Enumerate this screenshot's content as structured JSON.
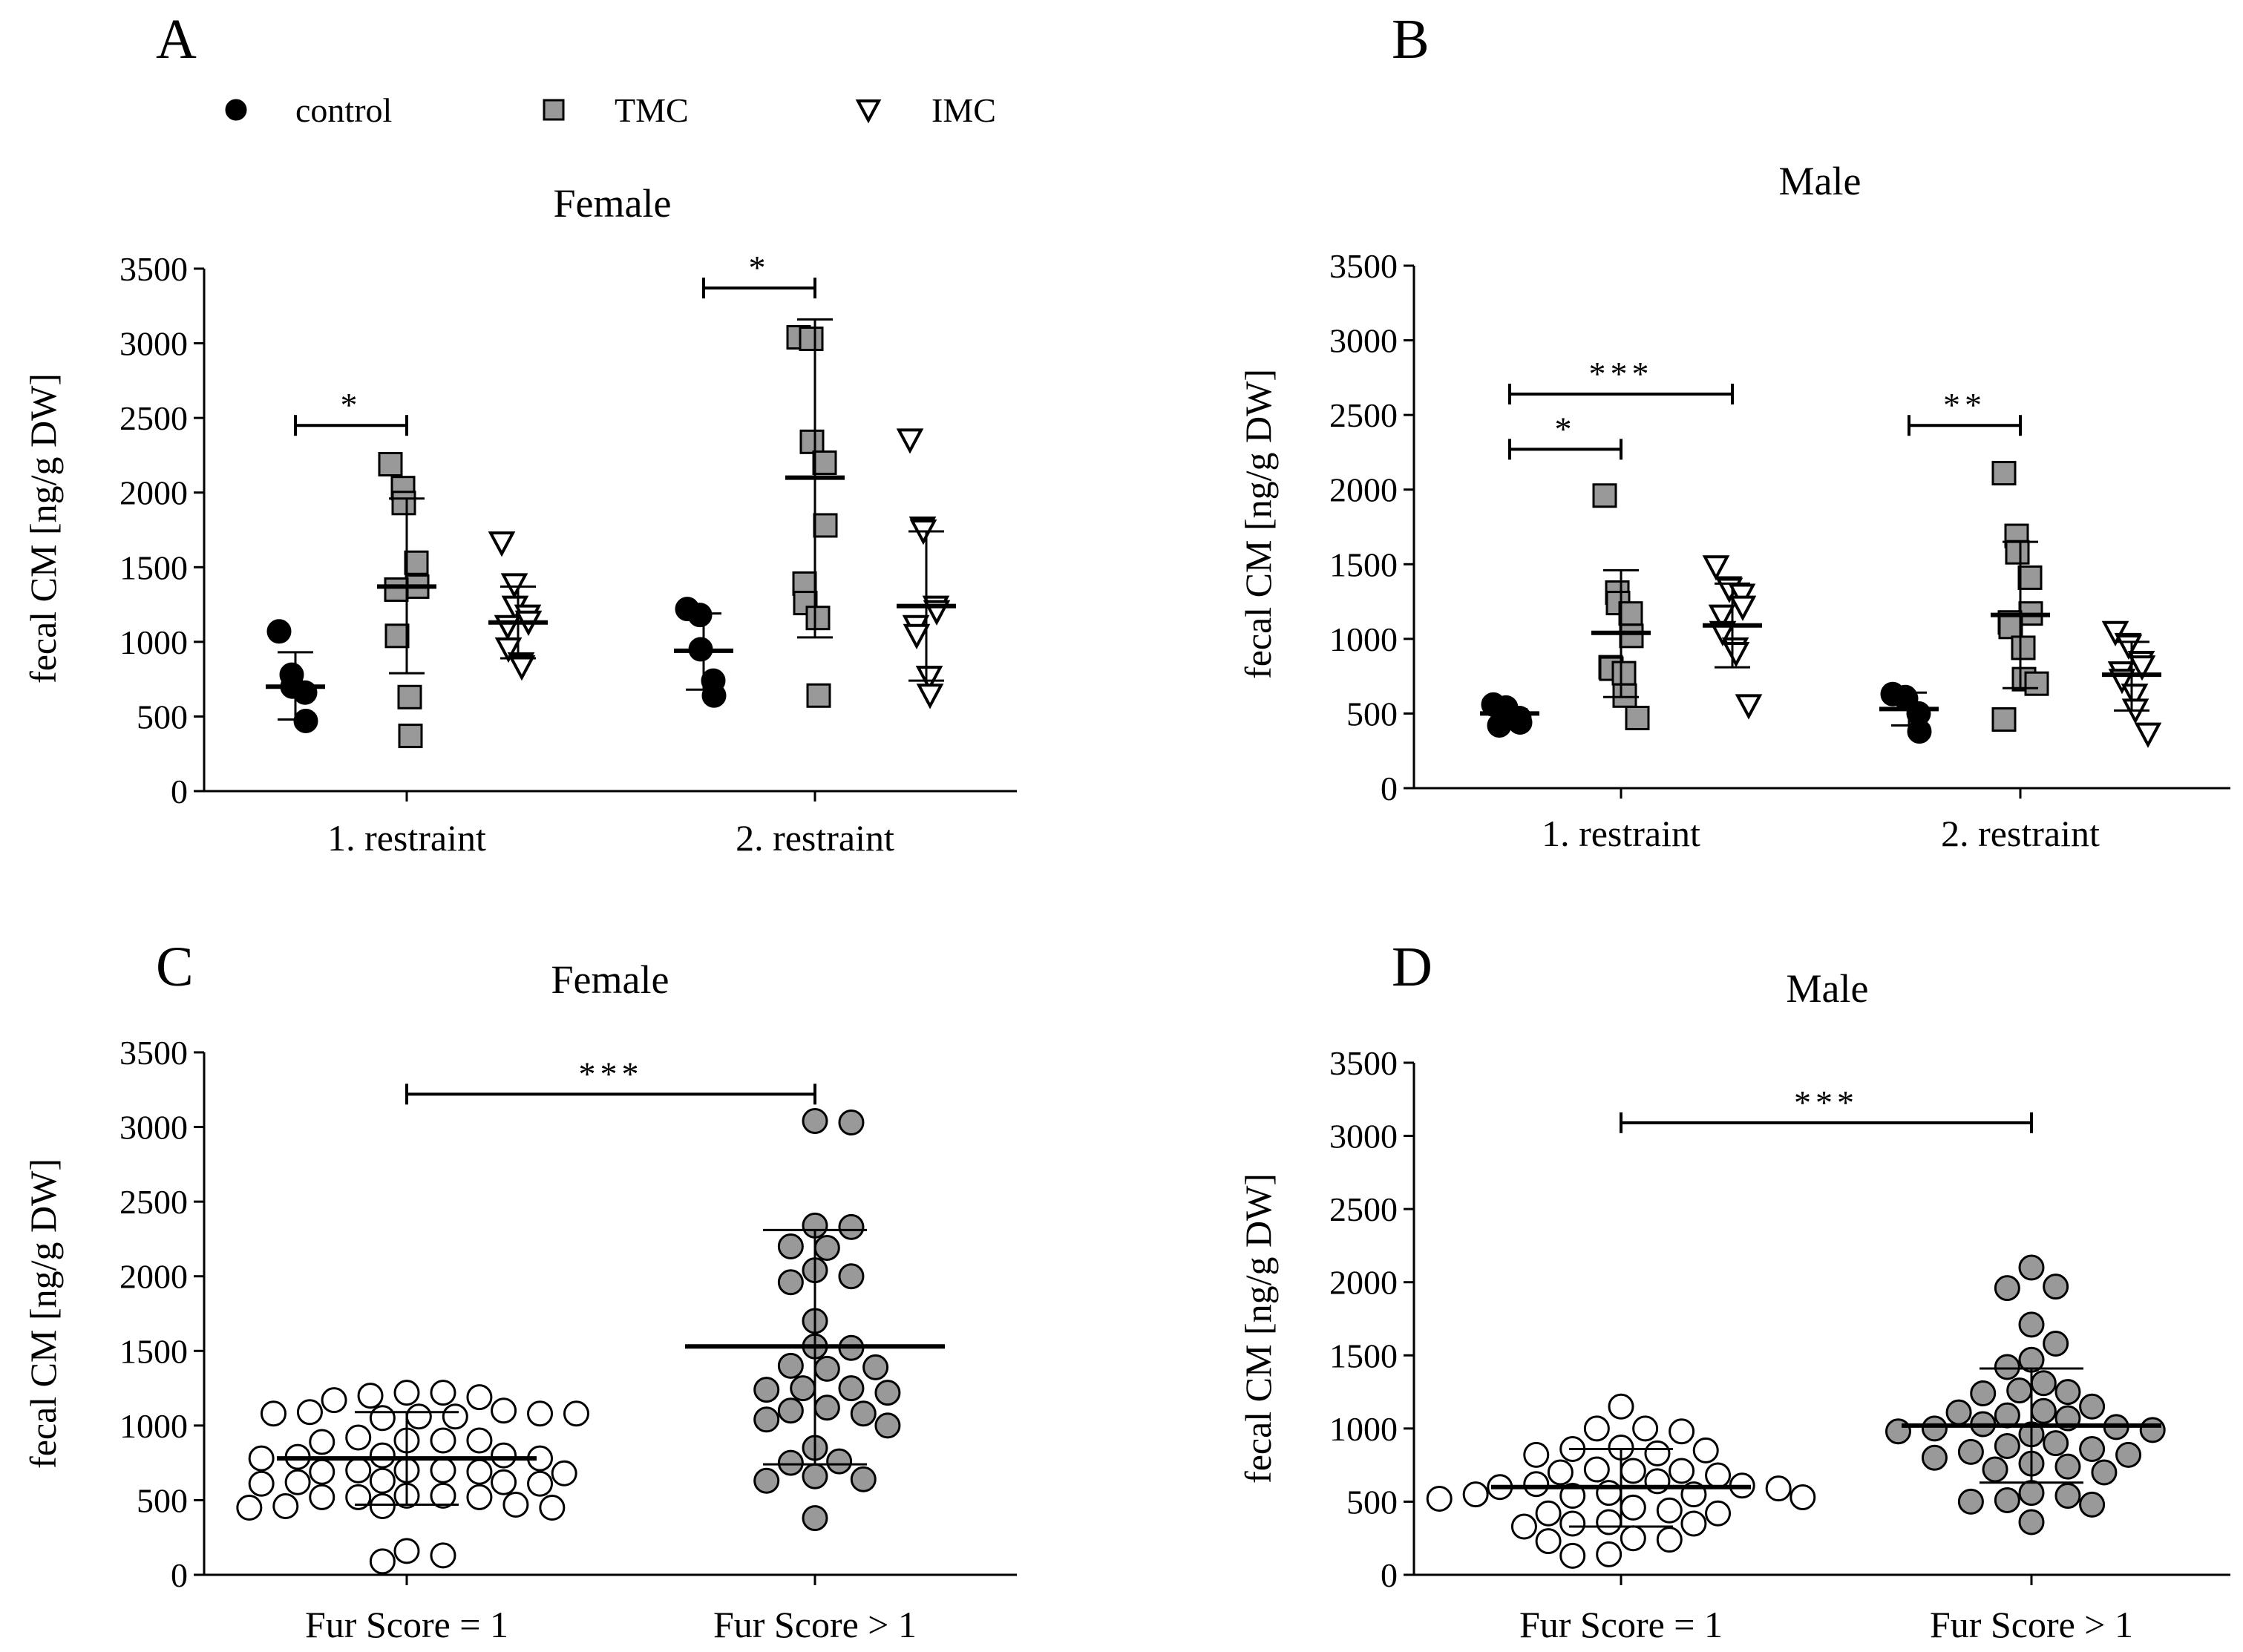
{
  "legend": [
    {
      "label": "control",
      "marker": "filled-circle",
      "color": "#000000"
    },
    {
      "label": "TMC",
      "marker": "gray-square",
      "color": "#999999"
    },
    {
      "label": "IMC",
      "marker": "open-triangle-down",
      "color": "#ffffff"
    }
  ],
  "chart_data": [
    {
      "panel": "A",
      "type": "scatter",
      "title": "Female",
      "ylabel": "fecal CM [ng/g DW]",
      "ylim": [
        0,
        3500
      ],
      "yticks": [
        0,
        500,
        1000,
        1500,
        2000,
        2500,
        3000,
        3500
      ],
      "categories": [
        "1. restraint",
        "2. restraint"
      ],
      "series": [
        {
          "name": "control",
          "groups": [
            {
              "values": [
                1070,
                780,
                700,
                660,
                470
              ],
              "mean": 700,
              "sd_low": 480,
              "sd_high": 930
            },
            {
              "values": [
                1220,
                1180,
                950,
                740,
                640
              ],
              "mean": 940,
              "sd_low": 680,
              "sd_high": 1190
            }
          ]
        },
        {
          "name": "TMC",
          "groups": [
            {
              "values": [
                2190,
                2030,
                1930,
                1530,
                1370,
                1350,
                1040,
                630,
                370
              ],
              "mean": 1370,
              "sd_low": 790,
              "sd_high": 1960
            },
            {
              "values": [
                3040,
                3030,
                2340,
                2200,
                1780,
                1390,
                1260,
                1160,
                640
              ],
              "mean": 2100,
              "sd_low": 1030,
              "sd_high": 3160
            }
          ]
        },
        {
          "name": "IMC",
          "groups": [
            {
              "values": [
                1660,
                1380,
                1230,
                1170,
                1130,
                1100,
                950,
                850,
                830
              ],
              "mean": 1130,
              "sd_low": 890,
              "sd_high": 1370
            },
            {
              "values": [
                2350,
                1760,
                1740,
                1230,
                1200,
                1100,
                1040,
                760,
                640
              ],
              "mean": 1240,
              "sd_low": 740,
              "sd_high": 1740
            }
          ]
        }
      ],
      "significance": [
        {
          "from": "control",
          "to": "TMC",
          "category": "1. restraint",
          "label": "*",
          "y": 2450
        },
        {
          "from": "control",
          "to": "TMC",
          "category": "2. restraint",
          "label": "*",
          "y": 3370
        }
      ]
    },
    {
      "panel": "B",
      "type": "scatter",
      "title": "Male",
      "ylabel": "fecal CM [ng/g DW]",
      "ylim": [
        0,
        3500
      ],
      "yticks": [
        0,
        500,
        1000,
        1500,
        2000,
        2500,
        3000,
        3500
      ],
      "categories": [
        "1. restraint",
        "2. restraint"
      ],
      "series": [
        {
          "name": "control",
          "groups": [
            {
              "values": [
                560,
                540,
                510,
                470,
                440,
                420
              ],
              "mean": 500,
              "sd_low": 470,
              "sd_high": 530
            },
            {
              "values": [
                630,
                610,
                600,
                500,
                380
              ],
              "mean": 530,
              "sd_low": 420,
              "sd_high": 640
            }
          ]
        },
        {
          "name": "TMC",
          "groups": [
            {
              "values": [
                1960,
                1310,
                1240,
                1170,
                1020,
                810,
                800,
                770,
                620,
                470
              ],
              "mean": 1040,
              "sd_low": 610,
              "sd_high": 1460
            },
            {
              "values": [
                2110,
                1690,
                1580,
                1410,
                1170,
                1110,
                1080,
                940,
                730,
                700,
                460
              ],
              "mean": 1160,
              "sd_low": 670,
              "sd_high": 1650
            }
          ]
        },
        {
          "name": "IMC",
          "groups": [
            {
              "values": [
                1480,
                1340,
                1330,
                1290,
                1210,
                1150,
                1040,
                930,
                900,
                550
              ],
              "mean": 1090,
              "sd_low": 810,
              "sd_high": 1370
            },
            {
              "values": [
                1040,
                960,
                950,
                840,
                810,
                770,
                720,
                620,
                520,
                360
              ],
              "mean": 760,
              "sd_low": 520,
              "sd_high": 980
            }
          ]
        }
      ],
      "significance": [
        {
          "from": "control",
          "to": "TMC",
          "category": "1. restraint",
          "label": "*",
          "y": 2270
        },
        {
          "from": "control",
          "to": "IMC",
          "category": "1. restraint",
          "label": "***",
          "y": 2640
        },
        {
          "from": "control",
          "to": "TMC",
          "category": "2. restraint",
          "label": "**",
          "y": 2430
        }
      ]
    },
    {
      "panel": "C",
      "type": "scatter",
      "title": "Female",
      "ylabel": "fecal CM [ng/g DW]",
      "ylim": [
        0,
        3500
      ],
      "yticks": [
        0,
        500,
        1000,
        1500,
        2000,
        2500,
        3000,
        3500
      ],
      "categories": [
        "Fur Score = 1",
        "Fur Score > 1"
      ],
      "series": [
        {
          "name": "Fur Score = 1",
          "fill": "#ffffff",
          "values": [
            1220,
            1190,
            1170,
            1200,
            1220,
            1100,
            1080,
            1090,
            1080,
            1060,
            1050,
            1060,
            1080,
            900,
            900,
            890,
            920,
            900,
            800,
            790,
            780,
            800,
            780,
            700,
            690,
            690,
            680,
            700,
            700,
            620,
            630,
            620,
            610,
            610,
            530,
            520,
            520,
            530,
            520,
            460,
            450,
            450,
            460,
            470,
            160,
            130,
            90
          ]
        },
        {
          "name": "Fur Score > 1",
          "fill": "#999999",
          "values": [
            3040,
            3030,
            2340,
            2330,
            2200,
            2190,
            2040,
            2000,
            1960,
            1700,
            1530,
            1520,
            1400,
            1390,
            1380,
            1250,
            1250,
            1240,
            1220,
            1120,
            1100,
            1080,
            1040,
            1000,
            850,
            760,
            750,
            660,
            640,
            630,
            380
          ]
        }
      ],
      "summary": [
        {
          "mean": 780,
          "sd_low": 470,
          "sd_high": 1090
        },
        {
          "mean": 1530,
          "sd_low": 740,
          "sd_high": 2310
        }
      ],
      "significance": [
        {
          "from": "Fur Score = 1",
          "to": "Fur Score > 1",
          "label": "***",
          "y": 3220
        }
      ]
    },
    {
      "panel": "D",
      "type": "scatter",
      "title": "Male",
      "ylabel": "fecal CM [ng/g DW]",
      "ylim": [
        0,
        3500
      ],
      "yticks": [
        0,
        500,
        1000,
        1500,
        2000,
        2500,
        3000,
        3500
      ],
      "categories": [
        "Fur Score = 1",
        "Fur Score > 1"
      ],
      "series": [
        {
          "name": "Fur Score = 1",
          "fill": "#ffffff",
          "values": [
            1150,
            1000,
            1000,
            980,
            870,
            860,
            850,
            830,
            820,
            720,
            710,
            710,
            700,
            680,
            640,
            620,
            610,
            600,
            590,
            560,
            550,
            550,
            540,
            530,
            520,
            460,
            440,
            420,
            420,
            360,
            350,
            350,
            330,
            250,
            240,
            230,
            140,
            130
          ]
        },
        {
          "name": "Fur Score > 1",
          "fill": "#999999",
          "values": [
            2100,
            1970,
            1960,
            1710,
            1580,
            1470,
            1420,
            1310,
            1260,
            1250,
            1240,
            1150,
            1120,
            1110,
            1090,
            1070,
            1030,
            1010,
            1000,
            990,
            980,
            960,
            900,
            880,
            860,
            840,
            820,
            800,
            760,
            740,
            720,
            700,
            560,
            540,
            510,
            500,
            480,
            360
          ]
        }
      ],
      "summary": [
        {
          "mean": 600,
          "sd_low": 330,
          "sd_high": 860
        },
        {
          "mean": 1020,
          "sd_low": 630,
          "sd_high": 1410
        }
      ],
      "significance": [
        {
          "from": "Fur Score = 1",
          "to": "Fur Score > 1",
          "label": "***",
          "y": 3090
        }
      ]
    }
  ]
}
